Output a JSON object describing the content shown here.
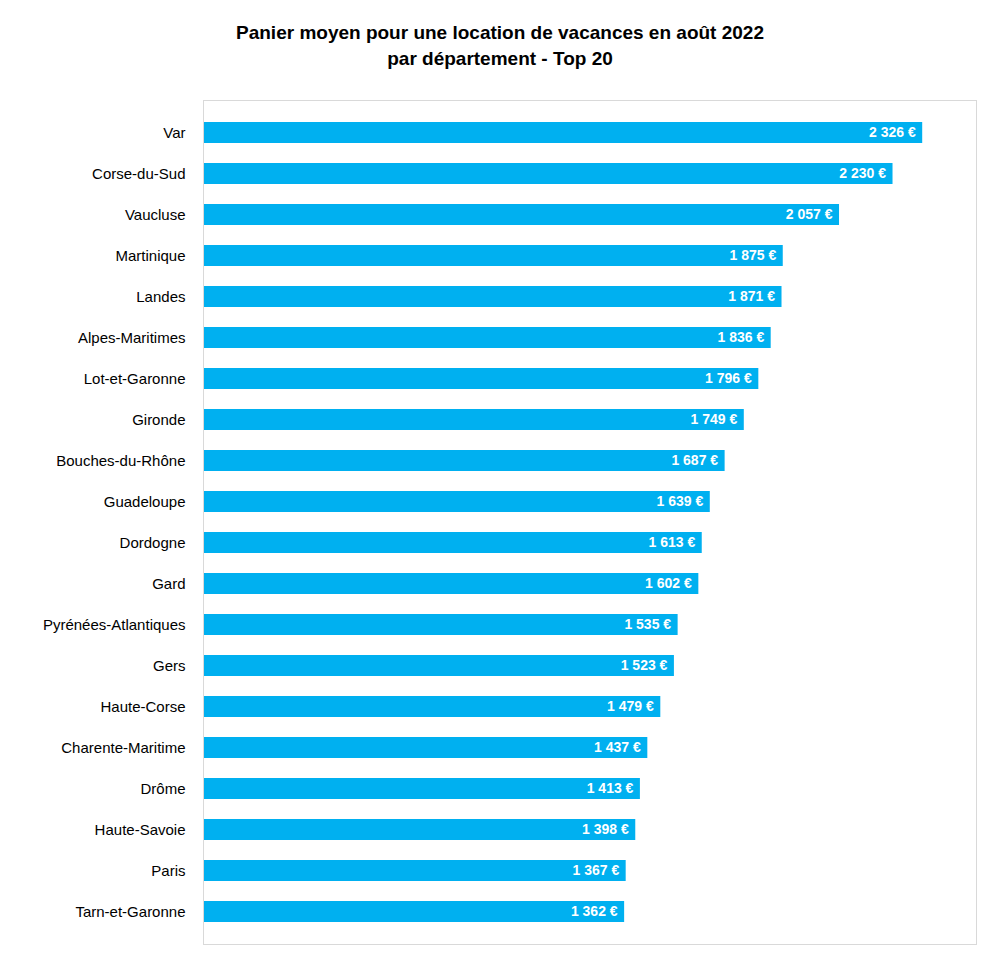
{
  "chart_data": {
    "type": "bar",
    "title": "Panier moyen pour une location de vacances en août 2022",
    "subtitle": "par département - Top 20",
    "orientation": "horizontal",
    "categories": [
      "Var",
      "Corse-du-Sud",
      "Vaucluse",
      "Martinique",
      "Landes",
      "Alpes-Maritimes",
      "Lot-et-Garonne",
      "Gironde",
      "Bouches-du-Rhône",
      "Guadeloupe",
      "Dordogne",
      "Gard",
      "Pyrénées-Atlantiques",
      "Gers",
      "Haute-Corse",
      "Charente-Maritime",
      "Drôme",
      "Haute-Savoie",
      "Paris",
      "Tarn-et-Garonne"
    ],
    "values": [
      2326,
      2230,
      2057,
      1875,
      1871,
      1836,
      1796,
      1749,
      1687,
      1639,
      1613,
      1602,
      1535,
      1523,
      1479,
      1437,
      1413,
      1398,
      1367,
      1362
    ],
    "value_labels": [
      "2 326 €",
      "2 230 €",
      "2 057 €",
      "1 875 €",
      "1 871 €",
      "1 836 €",
      "1 796 €",
      "1 749 €",
      "1 687 €",
      "1 639 €",
      "1 613 €",
      "1 602 €",
      "1 535 €",
      "1 523 €",
      "1 479 €",
      "1 437 €",
      "1 413 €",
      "1 398 €",
      "1 367 €",
      "1 362 €"
    ],
    "color": "#00b0f0",
    "xlim": [
      0,
      2500
    ],
    "xticks": [
      0
    ],
    "grid": false,
    "data_labels": true,
    "tick_labels": "y"
  }
}
